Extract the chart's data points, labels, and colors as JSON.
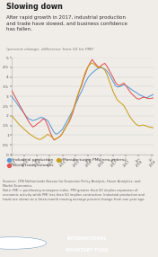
{
  "title": "Slowing down",
  "subtitle": "After rapid growth in 2017, industrial production\nand trade have slowed, and business confidence\nhas fallen.",
  "ylabel": "(percent change; difference from 50 for PMI)",
  "background_color": "#f0ede8",
  "title_color": "#1a1a1a",
  "subtitle_color": "#333333",
  "ylabel_color": "#777777",
  "source_text": "Sources: CPB Netherlands Bureau for Economic Policy Analysis, Haver Analytics, and\nMarkit Economics.\nNote: PMI = purchasing managers index. PMI greater than 50 implies expansion of\neconomic activity while PMI less than 50 implies contraction. Industrial production and\ntrade are shown as a three-month moving average percent change from one year ago.",
  "legend": [
    {
      "label": "Industrial production",
      "color": "#5b9bd5"
    },
    {
      "label": "World trade volumes",
      "color": "#e05555"
    },
    {
      "label": "Manufacturing PMI: new orders",
      "color": "#c8a020"
    }
  ],
  "ylim": [
    0,
    5
  ],
  "yticks": [
    0,
    0.5,
    1,
    1.5,
    2,
    2.5,
    3,
    3.5,
    4,
    4.5,
    5
  ],
  "ytick_labels": [
    "0",
    "0.5",
    "1",
    "1.5",
    "2",
    "2.5",
    "3",
    "3.5",
    "4",
    "4.5",
    "5"
  ],
  "footer_color": "#a8b8cc",
  "footer_text_color": "#ffffff",
  "n_points": 68,
  "industrial_production": [
    3.0,
    2.85,
    2.7,
    2.55,
    2.4,
    2.25,
    2.1,
    1.95,
    1.85,
    1.8,
    1.75,
    1.78,
    1.82,
    1.88,
    1.92,
    1.88,
    1.82,
    1.75,
    1.55,
    1.35,
    1.15,
    1.05,
    1.1,
    1.2,
    1.3,
    1.5,
    1.7,
    1.9,
    2.1,
    2.3,
    2.55,
    2.8,
    3.05,
    3.25,
    3.5,
    3.75,
    3.95,
    4.1,
    4.2,
    4.3,
    4.38,
    4.45,
    4.48,
    4.45,
    4.4,
    4.3,
    4.15,
    3.95,
    3.75,
    3.55,
    3.48,
    3.5,
    3.55,
    3.6,
    3.55,
    3.48,
    3.4,
    3.32,
    3.25,
    3.18,
    3.1,
    3.05,
    3.0,
    2.95,
    2.92,
    3.0,
    3.05,
    3.1
  ],
  "world_trade": [
    3.3,
    3.1,
    2.9,
    2.7,
    2.5,
    2.3,
    2.1,
    1.9,
    1.7,
    1.55,
    1.42,
    1.48,
    1.58,
    1.65,
    1.75,
    1.85,
    1.75,
    1.5,
    1.2,
    0.95,
    0.75,
    0.8,
    0.88,
    0.95,
    1.1,
    1.3,
    1.5,
    1.65,
    1.9,
    2.2,
    2.6,
    2.95,
    3.3,
    3.55,
    3.9,
    4.2,
    4.5,
    4.72,
    4.9,
    4.75,
    4.62,
    4.5,
    4.55,
    4.65,
    4.7,
    4.55,
    4.35,
    4.15,
    3.95,
    3.72,
    3.6,
    3.55,
    3.62,
    3.68,
    3.55,
    3.38,
    3.22,
    3.1,
    3.0,
    2.9,
    2.85,
    2.9,
    2.95,
    2.95,
    2.9,
    2.88,
    2.9,
    2.92
  ],
  "pmi": [
    2.0,
    1.88,
    1.75,
    1.62,
    1.5,
    1.4,
    1.3,
    1.2,
    1.1,
    1.02,
    0.95,
    0.88,
    0.82,
    0.78,
    0.8,
    0.88,
    0.95,
    1.05,
    0.98,
    0.9,
    0.78,
    0.82,
    0.88,
    0.95,
    1.1,
    1.3,
    1.5,
    1.7,
    2.0,
    2.3,
    2.65,
    3.0,
    3.3,
    3.62,
    4.0,
    4.3,
    4.52,
    4.65,
    4.72,
    4.65,
    4.55,
    4.45,
    4.52,
    4.45,
    4.35,
    4.12,
    3.82,
    3.52,
    3.22,
    3.0,
    2.8,
    2.7,
    2.62,
    2.52,
    2.32,
    2.12,
    1.92,
    1.78,
    1.65,
    1.55,
    1.48,
    1.5,
    1.52,
    1.5,
    1.45,
    1.42,
    1.4,
    1.38
  ],
  "xtick_positions": [
    0,
    6,
    12,
    18,
    24,
    30,
    36,
    42,
    48,
    54,
    60,
    66
  ],
  "xtick_labels": [
    "Jan\n2013",
    "Jul\n2013",
    "Jan\n2014",
    "Jul\n2014",
    "Jan\n2015",
    "Jul\n2015",
    "Jan\n2016",
    "Jul\n2016",
    "Jan\n2017",
    "Jul\n2017",
    "Jan\n2018",
    "Jul\n2018"
  ]
}
